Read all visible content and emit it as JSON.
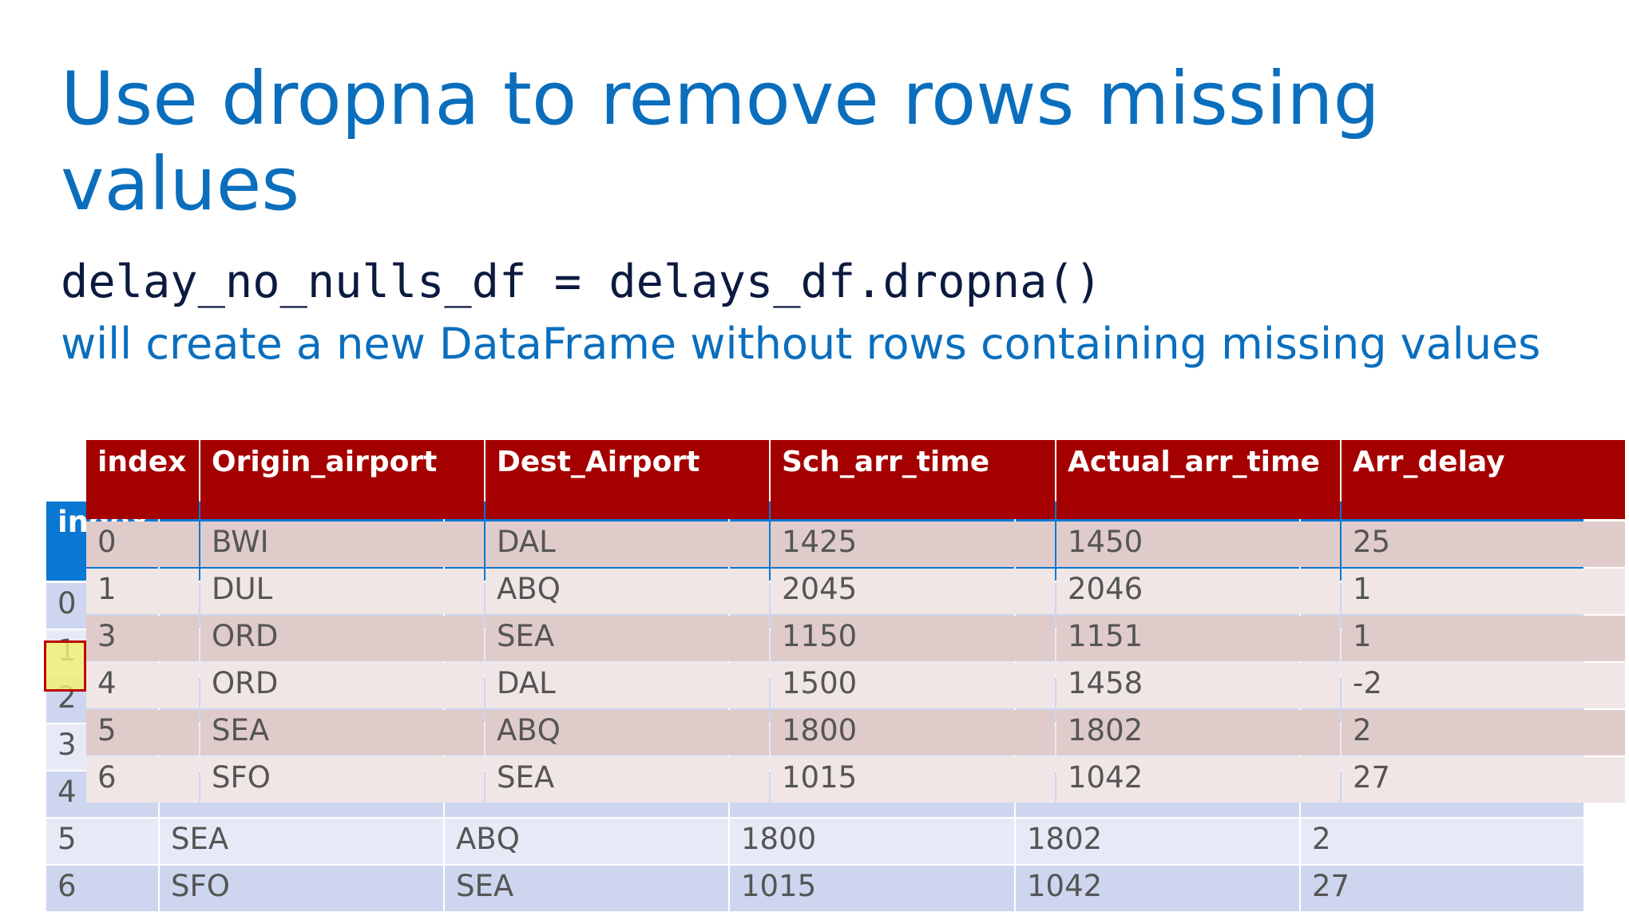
{
  "header": {
    "title": "Use dropna to remove rows missing values",
    "code": "delay_no_nulls_df = delays_df.dropna()",
    "description": "will create a new DataFrame without rows containing missing values"
  },
  "background_table": {
    "header": [
      "index"
    ],
    "rows": [
      [
        "0"
      ],
      [
        "1"
      ],
      [
        "2"
      ],
      [
        "3"
      ],
      [
        "4"
      ],
      [
        "5",
        "SEA",
        "ABQ",
        "1800",
        "1802",
        "2"
      ],
      [
        "6",
        "SFO",
        "SEA",
        "1015",
        "1042",
        "27"
      ]
    ]
  },
  "table": {
    "header": [
      "index",
      "Origin_airport",
      "Dest_Airport",
      "Sch_arr_time",
      "Actual_arr_time",
      "Arr_delay"
    ],
    "rows": [
      [
        "0",
        "BWI",
        "DAL",
        "1425",
        "1450",
        "25"
      ],
      [
        "1",
        "DUL",
        "ABQ",
        "2045",
        "2046",
        "1"
      ],
      [
        "3",
        "ORD",
        "SEA",
        "1150",
        "1151",
        "1"
      ],
      [
        "4",
        "ORD",
        "DAL",
        "1500",
        "1458",
        "-2"
      ],
      [
        "5",
        "SEA",
        "ABQ",
        "1800",
        "1802",
        "2"
      ],
      [
        "6",
        "SFO",
        "SEA",
        "1015",
        "1042",
        "27"
      ]
    ]
  }
}
